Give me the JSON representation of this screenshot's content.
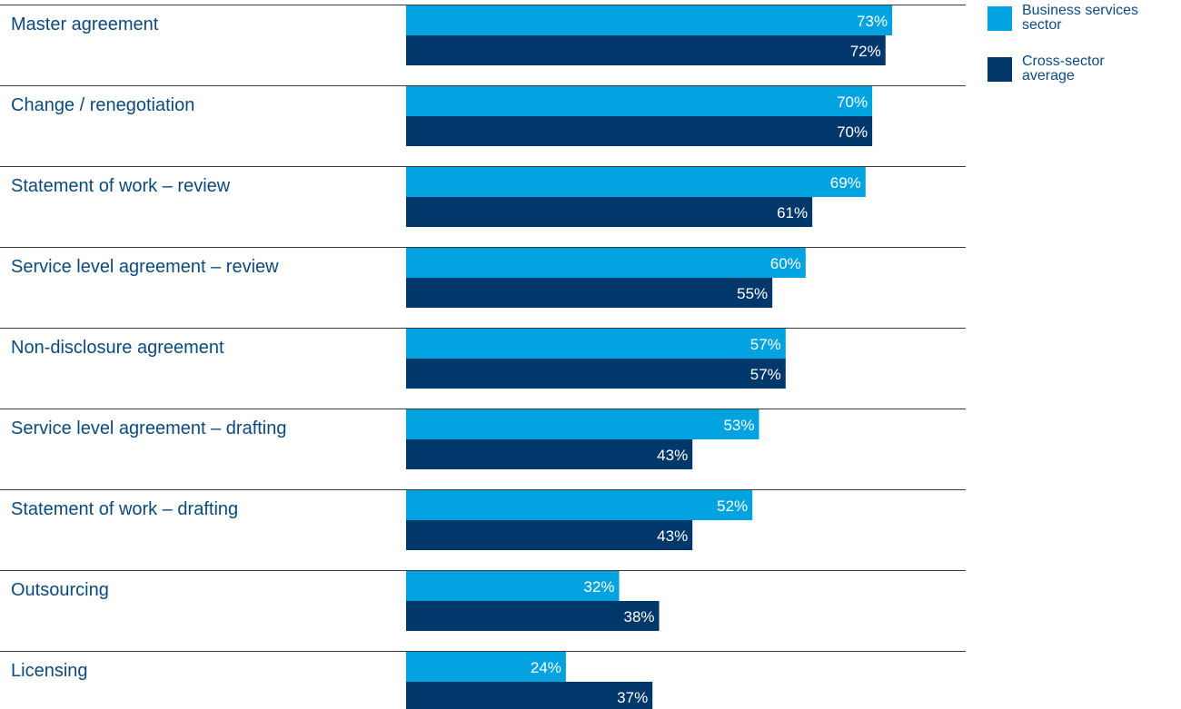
{
  "colors": {
    "series_a": "#00a3e0",
    "series_b": "#00386b",
    "label_text": "#0a4a7e",
    "rule": "#3a3a3a",
    "value_text": "#ffffff"
  },
  "legend": {
    "items": [
      {
        "line1": "Business services",
        "line2": "sector"
      },
      {
        "line1": "Cross-sector",
        "line2": "average"
      }
    ]
  },
  "chart_data": {
    "type": "bar",
    "orientation": "horizontal",
    "categories": [
      "Master agreement",
      "Change / renegotiation",
      "Statement of work – review",
      "Service level agreement – review",
      "Non-disclosure agreement",
      "Service level agreement – drafting",
      "Statement of work – drafting",
      "Outsourcing",
      "Licensing"
    ],
    "series": [
      {
        "name": "Business services sector",
        "values": [
          73,
          70,
          69,
          60,
          57,
          53,
          52,
          32,
          24
        ]
      },
      {
        "name": "Cross-sector average",
        "values": [
          72,
          70,
          61,
          55,
          57,
          43,
          43,
          38,
          37
        ]
      }
    ],
    "value_format": "{v}%",
    "xlim": [
      0,
      100
    ],
    "grid": false,
    "legend_position": "top-right"
  }
}
